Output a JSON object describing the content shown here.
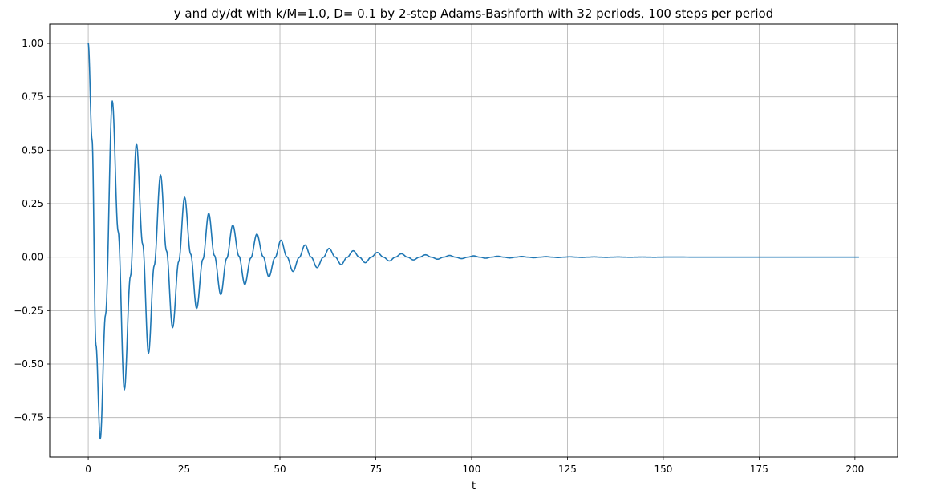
{
  "chart_data": {
    "type": "line",
    "title": "y and dy/dt with k/M=1.0, D= 0.1 by 2-step Adams-Bashforth with 32 periods, 100 steps per period",
    "xlabel": "t",
    "ylabel": "",
    "xlim": [
      -10.06,
      211.12
    ],
    "ylim": [
      -0.935,
      1.09
    ],
    "x_ticks": [
      0,
      25,
      50,
      75,
      100,
      125,
      150,
      175,
      200
    ],
    "x_tick_labels": [
      "0",
      "25",
      "50",
      "75",
      "100",
      "125",
      "150",
      "175",
      "200"
    ],
    "y_ticks": [
      -0.75,
      -0.5,
      -0.25,
      0.0,
      0.25,
      0.5,
      0.75,
      1.0
    ],
    "y_tick_labels": [
      "−0.75",
      "−0.50",
      "−0.25",
      "0.00",
      "0.25",
      "0.50",
      "0.75",
      "1.00"
    ],
    "grid": true,
    "legend": "none",
    "series": [
      {
        "color": "#1f77b4",
        "x": [
          0.0,
          1.0,
          2.0,
          3.14,
          4.5,
          6.28,
          7.8,
          9.42,
          11.0,
          12.57,
          14.2,
          15.71,
          17.2,
          18.85,
          20.4,
          21.99,
          23.6,
          25.13,
          26.7,
          28.27,
          29.9,
          31.42,
          32.9,
          34.56,
          36.1,
          37.7,
          39.3,
          40.84,
          42.4,
          43.98,
          45.6,
          47.12,
          48.7,
          50.27,
          51.8,
          53.41,
          55.0,
          56.55,
          58.1,
          59.69,
          61.3,
          62.83,
          64.4,
          65.97,
          67.5,
          69.12,
          70.7,
          72.26,
          73.8,
          75.4,
          77.0,
          78.54,
          80.1,
          81.68,
          83.3,
          84.82,
          86.4,
          87.96,
          89.5,
          91.11,
          92.7,
          94.25,
          95.8,
          97.39,
          99.0,
          100.53,
          102.1,
          103.67,
          105.2,
          106.81,
          108.4,
          109.96,
          111.5,
          113.1,
          114.7,
          116.24,
          117.8,
          119.38,
          121.0,
          122.52,
          124.1,
          125.66,
          127.2,
          128.81,
          130.4,
          131.95,
          133.5,
          135.09,
          136.7,
          138.23,
          139.8,
          141.37,
          142.9,
          144.51,
          146.1,
          147.65,
          149.2,
          150.8,
          160.0,
          170.0,
          180.0,
          190.0,
          201.06
        ],
        "values": [
          1.0,
          0.55,
          -0.41,
          -0.85,
          -0.27,
          0.73,
          0.12,
          -0.62,
          -0.09,
          0.53,
          0.06,
          -0.45,
          -0.04,
          0.385,
          0.03,
          -0.33,
          -0.02,
          0.28,
          0.015,
          -0.24,
          -0.01,
          0.205,
          0.008,
          -0.175,
          -0.006,
          0.15,
          0.005,
          -0.128,
          -0.004,
          0.108,
          0.003,
          -0.092,
          -0.003,
          0.079,
          0.002,
          -0.067,
          -0.002,
          0.057,
          0.001,
          -0.049,
          -0.001,
          0.041,
          0.001,
          -0.035,
          -0.001,
          0.03,
          0.0,
          -0.026,
          0.0,
          0.022,
          0.0,
          -0.018,
          0.0,
          0.016,
          0.0,
          -0.013,
          0.0,
          0.011,
          0.0,
          -0.0095,
          0.0,
          0.008,
          0.0,
          -0.007,
          0.0,
          0.006,
          0.0,
          -0.005,
          0.0,
          0.0043,
          0.0,
          -0.0037,
          0.0,
          0.0031,
          0.0,
          -0.0027,
          0.0,
          0.0023,
          0.0,
          -0.0019,
          0.0,
          0.0016,
          0.0,
          -0.0014,
          0.0,
          0.0012,
          0.0,
          -0.001,
          0.0,
          0.0009,
          0.0,
          -0.0007,
          0.0,
          0.0006,
          0.0,
          -0.0005,
          0.0,
          0.0004,
          0.0,
          0.0,
          0.0,
          0.0,
          0.0
        ]
      }
    ]
  }
}
